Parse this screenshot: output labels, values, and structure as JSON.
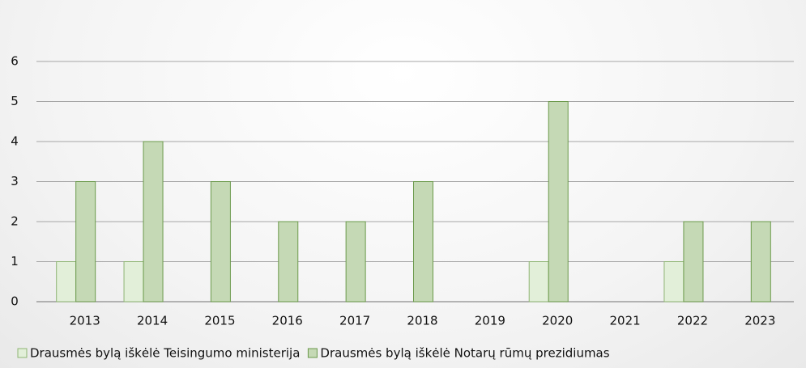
{
  "chart_data": {
    "type": "bar",
    "categories": [
      "2013",
      "2014",
      "2015",
      "2016",
      "2017",
      "2018",
      "2019",
      "2020",
      "2021",
      "2022",
      "2023"
    ],
    "series": [
      {
        "name": "Drausmės bylą iškėlė Teisingumo ministerija",
        "color": "#e2efd9",
        "values": [
          1,
          1,
          0,
          0,
          0,
          0,
          0,
          1,
          0,
          1,
          0
        ]
      },
      {
        "name": "Drausmės bylą iškėlė Notarų rūmų prezidiumas",
        "color": "#c5d9b5",
        "values": [
          3,
          4,
          3,
          2,
          2,
          3,
          0,
          5,
          0,
          2,
          2
        ]
      }
    ],
    "ylim": [
      0,
      6
    ],
    "yticks": [
      0,
      1,
      2,
      3,
      4,
      5,
      6
    ],
    "grid": true,
    "legend": "bottom"
  }
}
